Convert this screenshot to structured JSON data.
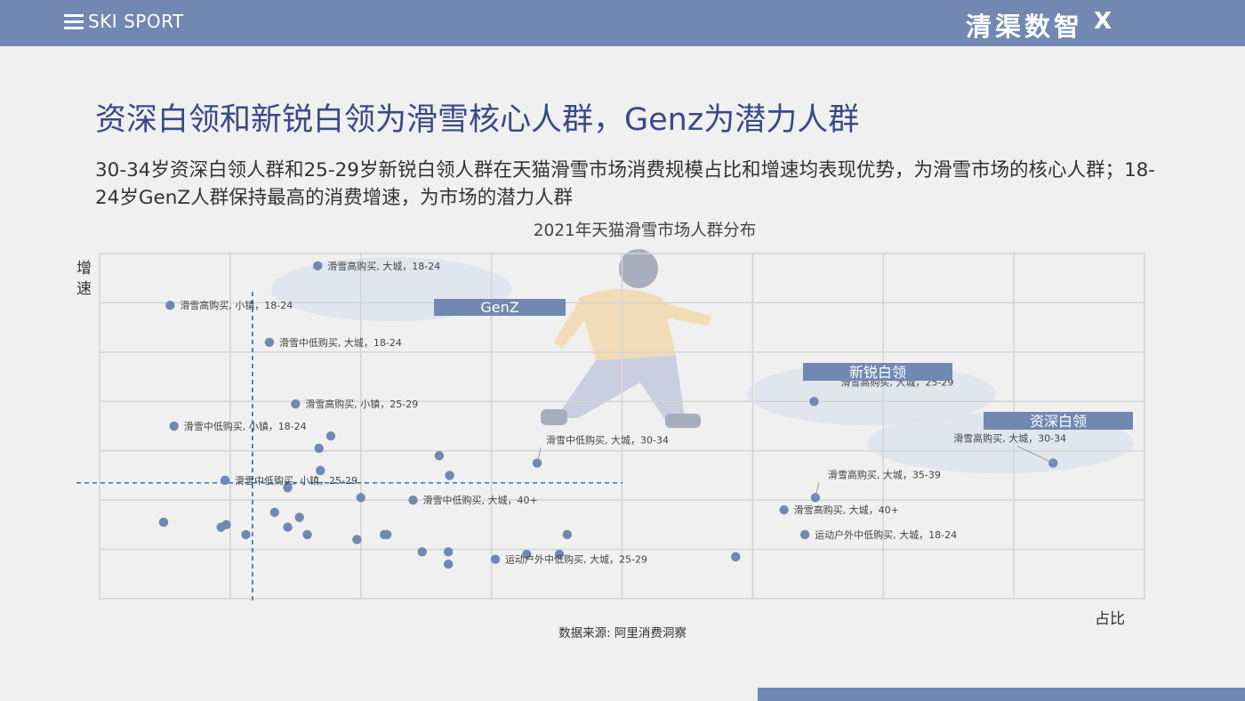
{
  "header": {
    "brand": "SKI SPORT",
    "logo": "清渠数智",
    "logo_x": "X",
    "menu_icon": "hamburger-menu-icon"
  },
  "title": "资深白领和新锐白领为滑雪核心人群，Genz为潜力人群",
  "subtitle": "30-34岁资深白领人群和25-29岁新锐白领人群在天猫滑雪市场消费规模占比和增速均表现优势，为滑雪市场的核心人群；18-24岁GenZ人群保持最高的消费增速，为市场的潜力人群",
  "source": "数据来源: 阿里消费洞察",
  "colors": {
    "accent": "#7188b3",
    "title": "#3a4a86",
    "dash": "#2a6fb0",
    "grid": "#dddddd",
    "bg": "#f0f0f0"
  },
  "chart_data": {
    "type": "scatter",
    "title": "2021年天猫滑雪市场人群分布",
    "xlabel": "占比",
    "ylabel": "增速",
    "xlim": [
      0,
      8
    ],
    "ylim": [
      0,
      7
    ],
    "grid": true,
    "groups": [
      {
        "label": "GenZ"
      },
      {
        "label": "新锐白领"
      },
      {
        "label": "资深白领"
      }
    ],
    "points": [
      {
        "x": 1.67,
        "y": 6.75,
        "label": "滑雪高购买, 大城，18-24"
      },
      {
        "x": 0.54,
        "y": 5.95,
        "label": "滑雪高购买, 小镇，18-24"
      },
      {
        "x": 1.3,
        "y": 5.2,
        "label": "滑雪中低购买, 大城，18-24"
      },
      {
        "x": 1.5,
        "y": 3.95,
        "label": "滑雪高购买, 小镇，25-29"
      },
      {
        "x": 0.57,
        "y": 3.5,
        "label": "滑雪中低购买, 小镇，18-24"
      },
      {
        "x": 0.96,
        "y": 2.4,
        "label": "滑雪中低购买, 小镇，25-29"
      },
      {
        "x": 3.35,
        "y": 2.75,
        "label": "滑雪中低购买, 大城，30-34"
      },
      {
        "x": 2.4,
        "y": 2.0,
        "label": "滑雪中低购买, 大城，40+"
      },
      {
        "x": 5.24,
        "y": 1.8,
        "label": "滑雪高购买, 大城，40+"
      },
      {
        "x": 5.4,
        "y": 1.3,
        "label": "运动户外中低购买, 大城，18-24"
      },
      {
        "x": 3.03,
        "y": 0.8,
        "label": "运动户外中低购买, 大城，25-29"
      },
      {
        "x": 5.47,
        "y": 4.0,
        "label": "滑雪高购买, 大城，25-29"
      },
      {
        "x": 7.3,
        "y": 2.75,
        "label": "滑雪高购买, 大城，30-34"
      },
      {
        "x": 5.48,
        "y": 2.05,
        "label": "滑雪高购买, 大城，35-39"
      },
      {
        "x": 1.77,
        "y": 3.3
      },
      {
        "x": 1.68,
        "y": 3.05
      },
      {
        "x": 2.6,
        "y": 2.9
      },
      {
        "x": 1.69,
        "y": 2.6
      },
      {
        "x": 2.68,
        "y": 2.5
      },
      {
        "x": 1.44,
        "y": 2.25
      },
      {
        "x": 2.0,
        "y": 2.05
      },
      {
        "x": 1.34,
        "y": 1.75
      },
      {
        "x": 1.53,
        "y": 1.65
      },
      {
        "x": 0.49,
        "y": 1.55
      },
      {
        "x": 0.97,
        "y": 1.5
      },
      {
        "x": 0.93,
        "y": 1.45
      },
      {
        "x": 1.44,
        "y": 1.45
      },
      {
        "x": 1.12,
        "y": 1.3
      },
      {
        "x": 1.59,
        "y": 1.3
      },
      {
        "x": 2.18,
        "y": 1.3
      },
      {
        "x": 2.2,
        "y": 1.3
      },
      {
        "x": 3.58,
        "y": 1.3
      },
      {
        "x": 1.97,
        "y": 1.2
      },
      {
        "x": 2.47,
        "y": 0.95
      },
      {
        "x": 2.67,
        "y": 0.95
      },
      {
        "x": 3.27,
        "y": 0.9
      },
      {
        "x": 3.52,
        "y": 0.9
      },
      {
        "x": 4.87,
        "y": 0.85
      },
      {
        "x": 2.67,
        "y": 0.7
      }
    ],
    "reference_lines": {
      "x": 1.17,
      "y": 2.35
    }
  }
}
